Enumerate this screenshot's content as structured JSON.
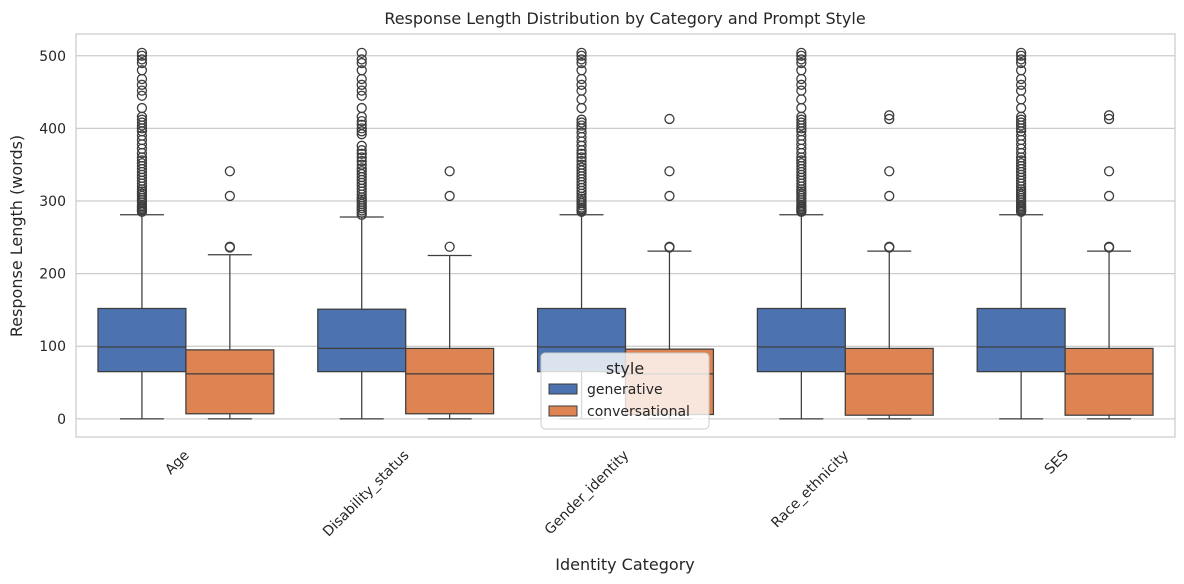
{
  "chart_data": {
    "type": "boxplot",
    "title": "Response Length Distribution by Category and Prompt Style",
    "xlabel": "Identity Category",
    "ylabel": "Response Length (words)",
    "ylim": [
      -25,
      530
    ],
    "yticks": [
      0,
      100,
      200,
      300,
      400,
      500
    ],
    "grid": true,
    "categories": [
      "Age",
      "Disability_status",
      "Gender_identity",
      "Race_ethnicity",
      "SES"
    ],
    "legend": {
      "title": "style",
      "position": "bottom-center"
    },
    "series": [
      {
        "name": "generative",
        "color": "#4c72b0",
        "boxes": [
          {
            "whisker_low": 0,
            "q1": 65,
            "median": 99,
            "q3": 152,
            "whisker_high": 281,
            "outliers": [
              285,
              287,
              289,
              291,
              293,
              295,
              298,
              301,
              304,
              307,
              310,
              313,
              316,
              320,
              324,
              328,
              332,
              336,
              340,
              344,
              348,
              352,
              356,
              360,
              366,
              372,
              378,
              384,
              390,
              396,
              400,
              404,
              408,
              412,
              416,
              428,
              445,
              452,
              460,
              468,
              480,
              490,
              495,
              500,
              504
            ]
          },
          {
            "whisker_low": 0,
            "q1": 65,
            "median": 97,
            "q3": 151,
            "whisker_high": 278,
            "outliers": [
              281,
              284,
              287,
              290,
              293,
              296,
              299,
              302,
              305,
              309,
              313,
              317,
              321,
              325,
              329,
              333,
              337,
              341,
              345,
              350,
              355,
              360,
              365,
              370,
              376,
              392,
              396,
              400,
              405,
              410,
              416,
              428,
              445,
              452,
              460,
              468,
              480,
              490,
              495,
              504
            ]
          },
          {
            "whisker_low": 0,
            "q1": 65,
            "median": 99,
            "q3": 152,
            "whisker_high": 281,
            "outliers": [
              285,
              287,
              289,
              291,
              294,
              297,
              300,
              303,
              306,
              310,
              314,
              318,
              322,
              326,
              330,
              334,
              338,
              342,
              346,
              350,
              355,
              360,
              365,
              370,
              376,
              382,
              388,
              394,
              400,
              404,
              408,
              412,
              428,
              440,
              452,
              460,
              468,
              480,
              490,
              495,
              500,
              504
            ]
          },
          {
            "whisker_low": 0,
            "q1": 65,
            "median": 99,
            "q3": 152,
            "whisker_high": 281,
            "outliers": [
              285,
              287,
              289,
              291,
              293,
              295,
              298,
              301,
              304,
              307,
              310,
              313,
              316,
              320,
              324,
              328,
              332,
              336,
              340,
              344,
              348,
              352,
              356,
              360,
              366,
              372,
              378,
              384,
              390,
              396,
              400,
              404,
              408,
              412,
              416,
              428,
              440,
              452,
              460,
              468,
              480,
              490,
              495,
              500,
              504
            ]
          },
          {
            "whisker_low": 0,
            "q1": 65,
            "median": 99,
            "q3": 152,
            "whisker_high": 281,
            "outliers": [
              285,
              287,
              289,
              291,
              293,
              295,
              298,
              301,
              304,
              307,
              310,
              313,
              316,
              320,
              324,
              328,
              332,
              336,
              340,
              344,
              348,
              352,
              356,
              360,
              366,
              372,
              378,
              384,
              390,
              396,
              400,
              404,
              408,
              412,
              416,
              428,
              440,
              452,
              460,
              468,
              480,
              490,
              495,
              500,
              504
            ]
          }
        ]
      },
      {
        "name": "conversational",
        "color": "#dd8452",
        "boxes": [
          {
            "whisker_low": 0,
            "q1": 7,
            "median": 62,
            "q3": 95,
            "whisker_high": 226,
            "outliers": [
              236,
              237,
              307,
              341
            ]
          },
          {
            "whisker_low": 0,
            "q1": 7,
            "median": 62,
            "q3": 97,
            "whisker_high": 225,
            "outliers": [
              237,
              307,
              341
            ]
          },
          {
            "whisker_low": 0,
            "q1": 6,
            "median": 62,
            "q3": 96,
            "whisker_high": 231,
            "outliers": [
              236,
              237,
              307,
              341,
              413
            ]
          },
          {
            "whisker_low": 0,
            "q1": 5,
            "median": 62,
            "q3": 97,
            "whisker_high": 231,
            "outliers": [
              236,
              237,
              307,
              341,
              413,
              418
            ]
          },
          {
            "whisker_low": 0,
            "q1": 5,
            "median": 62,
            "q3": 97,
            "whisker_high": 231,
            "outliers": [
              236,
              237,
              307,
              341,
              413,
              418
            ]
          }
        ]
      }
    ]
  }
}
